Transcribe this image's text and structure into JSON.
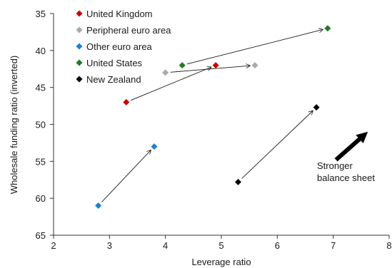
{
  "chart_data": {
    "type": "scatter",
    "xlabel": "Leverage ratio",
    "ylabel": "Wholesale funding ratio (inverted)",
    "xlim": [
      2,
      8
    ],
    "ylim": [
      35,
      65
    ],
    "y_inverted": true,
    "x_ticks": [
      "2",
      "3",
      "4",
      "5",
      "6",
      "7",
      "8"
    ],
    "y_ticks": [
      "35",
      "40",
      "45",
      "50",
      "55",
      "60",
      "65"
    ],
    "grid": false,
    "legend_position": "top-left",
    "series": [
      {
        "name": "United Kingdom",
        "color": "#cc0000",
        "points": [
          {
            "x": 3.3,
            "y": 47
          },
          {
            "x": 4.9,
            "y": 42
          }
        ],
        "arrow": true
      },
      {
        "name": "Peripheral euro area",
        "color": "#aaaaaa",
        "points": [
          {
            "x": 4.0,
            "y": 43
          },
          {
            "x": 5.6,
            "y": 42
          }
        ],
        "arrow": true
      },
      {
        "name": "Other euro area",
        "color": "#1f7fd0",
        "points": [
          {
            "x": 2.8,
            "y": 61
          },
          {
            "x": 3.8,
            "y": 53
          }
        ],
        "arrow": true
      },
      {
        "name": "United States",
        "color": "#1e7b1e",
        "points": [
          {
            "x": 4.3,
            "y": 42
          },
          {
            "x": 6.9,
            "y": 37
          }
        ],
        "arrow": true
      },
      {
        "name": "New Zealand",
        "color": "#000000",
        "points": [
          {
            "x": 5.3,
            "y": 57.8
          },
          {
            "x": 6.7,
            "y": 47.7
          }
        ],
        "arrow": true
      }
    ],
    "annotation": {
      "lines": [
        "Stronger",
        "balance sheet"
      ],
      "arrow_from": {
        "x": 7.05,
        "y": 54.8
      },
      "arrow_to": {
        "x": 7.5,
        "y": 51.8
      }
    }
  }
}
